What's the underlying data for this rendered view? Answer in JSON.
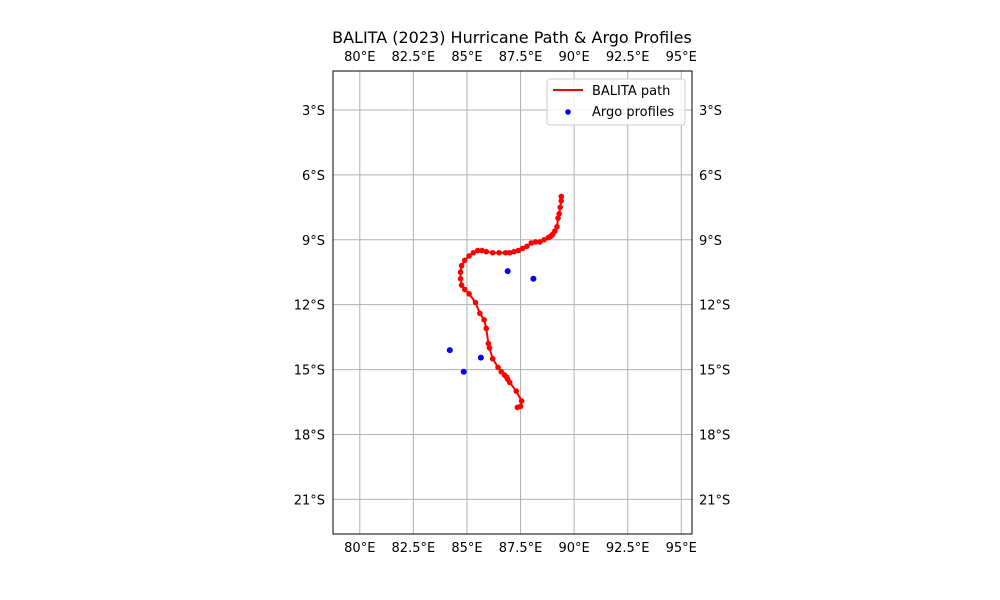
{
  "chart_data": {
    "type": "map",
    "title": "BALITA (2023) Hurricane Path & Argo Profiles",
    "xlim": [
      78.75,
      95.5
    ],
    "ylim": [
      -22.6,
      -1.2
    ],
    "grid": true,
    "legend_position": "upper right",
    "x_ticks": [
      {
        "value": 80,
        "label": "80°E"
      },
      {
        "value": 82.5,
        "label": "82.5°E"
      },
      {
        "value": 85,
        "label": "85°E"
      },
      {
        "value": 87.5,
        "label": "87.5°E"
      },
      {
        "value": 90,
        "label": "90°E"
      },
      {
        "value": 92.5,
        "label": "92.5°E"
      },
      {
        "value": 95,
        "label": "95°E"
      }
    ],
    "y_ticks": [
      {
        "value": -3,
        "label": "3°S"
      },
      {
        "value": -6,
        "label": "6°S"
      },
      {
        "value": -9,
        "label": "9°S"
      },
      {
        "value": -12,
        "label": "12°S"
      },
      {
        "value": -15,
        "label": "15°S"
      },
      {
        "value": -18,
        "label": "18°S"
      },
      {
        "value": -21,
        "label": "21°S"
      }
    ],
    "series": [
      {
        "name": "BALITA path",
        "kind": "line",
        "color": "#ff0000",
        "lon": [
          89.4,
          89.4,
          89.35,
          89.3,
          89.25,
          89.2,
          89.1,
          89.0,
          88.95,
          88.9,
          88.8,
          88.6,
          88.4,
          88.2,
          88.0,
          87.8,
          87.6,
          87.4,
          87.2,
          87.0,
          86.8,
          86.5,
          86.2,
          85.9,
          85.7,
          85.5,
          85.3,
          85.1,
          84.9,
          84.75,
          84.7,
          84.7,
          84.75,
          84.9,
          85.1,
          85.4,
          85.6,
          85.8,
          85.9,
          86.0,
          86.05,
          86.2,
          86.45,
          86.6,
          86.75,
          86.85,
          86.9,
          87.0,
          87.3,
          87.55,
          87.5,
          87.35
        ],
        "lat": [
          -7.0,
          -7.2,
          -7.5,
          -7.8,
          -8.0,
          -8.4,
          -8.6,
          -8.75,
          -8.8,
          -8.85,
          -8.9,
          -9.0,
          -9.1,
          -9.1,
          -9.15,
          -9.3,
          -9.4,
          -9.5,
          -9.55,
          -9.6,
          -9.6,
          -9.6,
          -9.6,
          -9.55,
          -9.5,
          -9.5,
          -9.6,
          -9.75,
          -9.95,
          -10.2,
          -10.5,
          -10.8,
          -11.1,
          -11.3,
          -11.5,
          -11.9,
          -12.4,
          -12.7,
          -13.1,
          -13.8,
          -14.0,
          -14.5,
          -14.9,
          -15.1,
          -15.25,
          -15.35,
          -15.45,
          -15.6,
          -16.0,
          -16.45,
          -16.7,
          -16.75
        ]
      },
      {
        "name": "Argo profiles",
        "kind": "scatter",
        "color": "#0000ff",
        "lon": [
          86.9,
          88.1,
          84.2,
          85.65,
          84.85
        ],
        "lat": [
          -10.45,
          -10.8,
          -14.1,
          -14.45,
          -15.1
        ]
      }
    ]
  }
}
